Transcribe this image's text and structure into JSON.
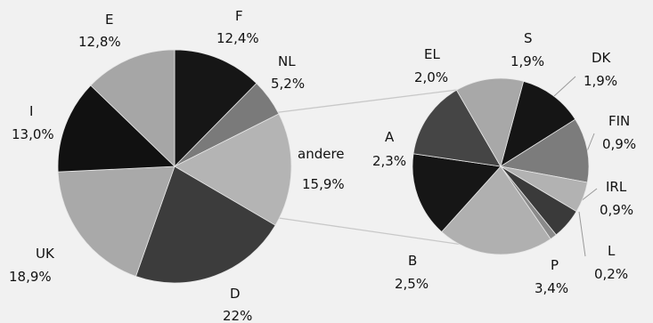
{
  "chart_data": [
    {
      "type": "pie",
      "unit": "%",
      "slices": [
        {
          "label": "F",
          "value": 12.4,
          "display": "12,4%",
          "color": "#161616"
        },
        {
          "label": "NL",
          "value": 5.2,
          "display": "5,2%",
          "color": "#7a7a7a"
        },
        {
          "label": "andere",
          "value": 15.9,
          "display": "15,9%",
          "color": "#b4b4b4"
        },
        {
          "label": "D",
          "value": 22,
          "display": "22%",
          "color": "#3c3c3c"
        },
        {
          "label": "UK",
          "value": 18.9,
          "display": "18,9%",
          "color": "#a9a9a9"
        },
        {
          "label": "I",
          "value": 13.0,
          "display": "13,0%",
          "color": "#111111"
        },
        {
          "label": "E",
          "value": 12.8,
          "display": "12,8%",
          "color": "#a6a6a6"
        }
      ]
    },
    {
      "type": "pie",
      "unit": "%",
      "slices": [
        {
          "label": "S",
          "value": 1.9,
          "display": "1,9%",
          "color": "#151515"
        },
        {
          "label": "DK",
          "value": 1.9,
          "display": "1,9%",
          "color": "#7c7c7c"
        },
        {
          "label": "FIN",
          "value": 0.9,
          "display": "0,9%",
          "color": "#b2b2b2"
        },
        {
          "label": "IRL",
          "value": 0.9,
          "display": "0,9%",
          "color": "#3a3a3a"
        },
        {
          "label": "L",
          "value": 0.2,
          "display": "0,2%",
          "color": "#8a8a8a"
        },
        {
          "label": "P",
          "value": 3.4,
          "display": "3,4%",
          "color": "#b0b0b0"
        },
        {
          "label": "B",
          "value": 2.5,
          "display": "2,5%",
          "color": "#161616"
        },
        {
          "label": "A",
          "value": 2.3,
          "display": "2,3%",
          "color": "#454545"
        },
        {
          "label": "EL",
          "value": 2.0,
          "display": "2,0%",
          "color": "#a8a8a8"
        }
      ]
    }
  ]
}
